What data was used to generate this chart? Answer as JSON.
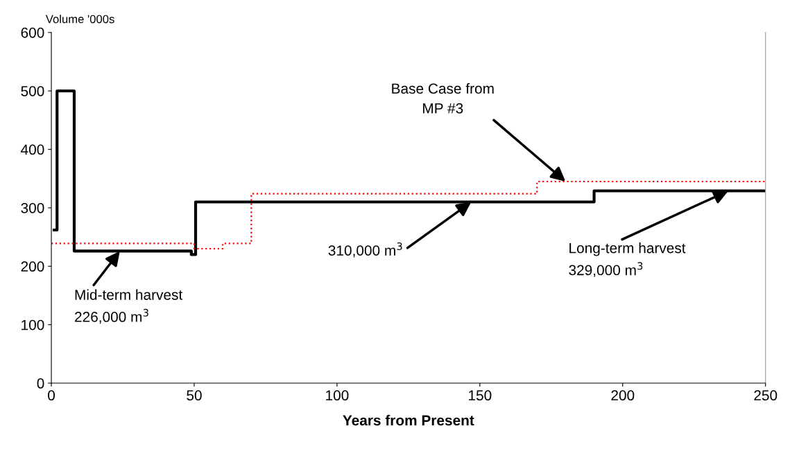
{
  "chart_data": {
    "type": "step",
    "xlabel": "Years from Present",
    "ylabel": "Volume '000s",
    "series": [
      {
        "color": "#000000",
        "line_style": "solid",
        "x": [
          1,
          2,
          8,
          49,
          50.5,
          190,
          250
        ],
        "values": [
          262,
          500,
          226,
          220,
          310,
          329,
          329
        ]
      },
      {
        "color": "#ff0000",
        "line_style": "dotted",
        "x": [
          0,
          50,
          60,
          70,
          170,
          250
        ],
        "values": [
          239,
          230,
          239,
          324,
          345,
          345
        ]
      }
    ],
    "annotations": [
      {
        "text": "Mid-term harvest\n226,000 m$^{3}$",
        "x": 24,
        "y": 226
      },
      {
        "text": "310,000 m$^{3}$",
        "x": 147,
        "y": 310
      },
      {
        "text": "Long-term harvest\n329,000 m$^{3}$",
        "x": 237,
        "y": 329
      },
      {
        "text": "Base Case from\nMP #3",
        "x": 180,
        "y": 345
      }
    ],
    "xlim": [
      0,
      250
    ],
    "ylim": [
      0,
      600
    ],
    "xticks": [
      0,
      50,
      100,
      150,
      200,
      250
    ],
    "yticks": [
      0,
      100,
      200,
      300,
      400,
      500,
      600
    ],
    "grid": false,
    "legend": false
  }
}
